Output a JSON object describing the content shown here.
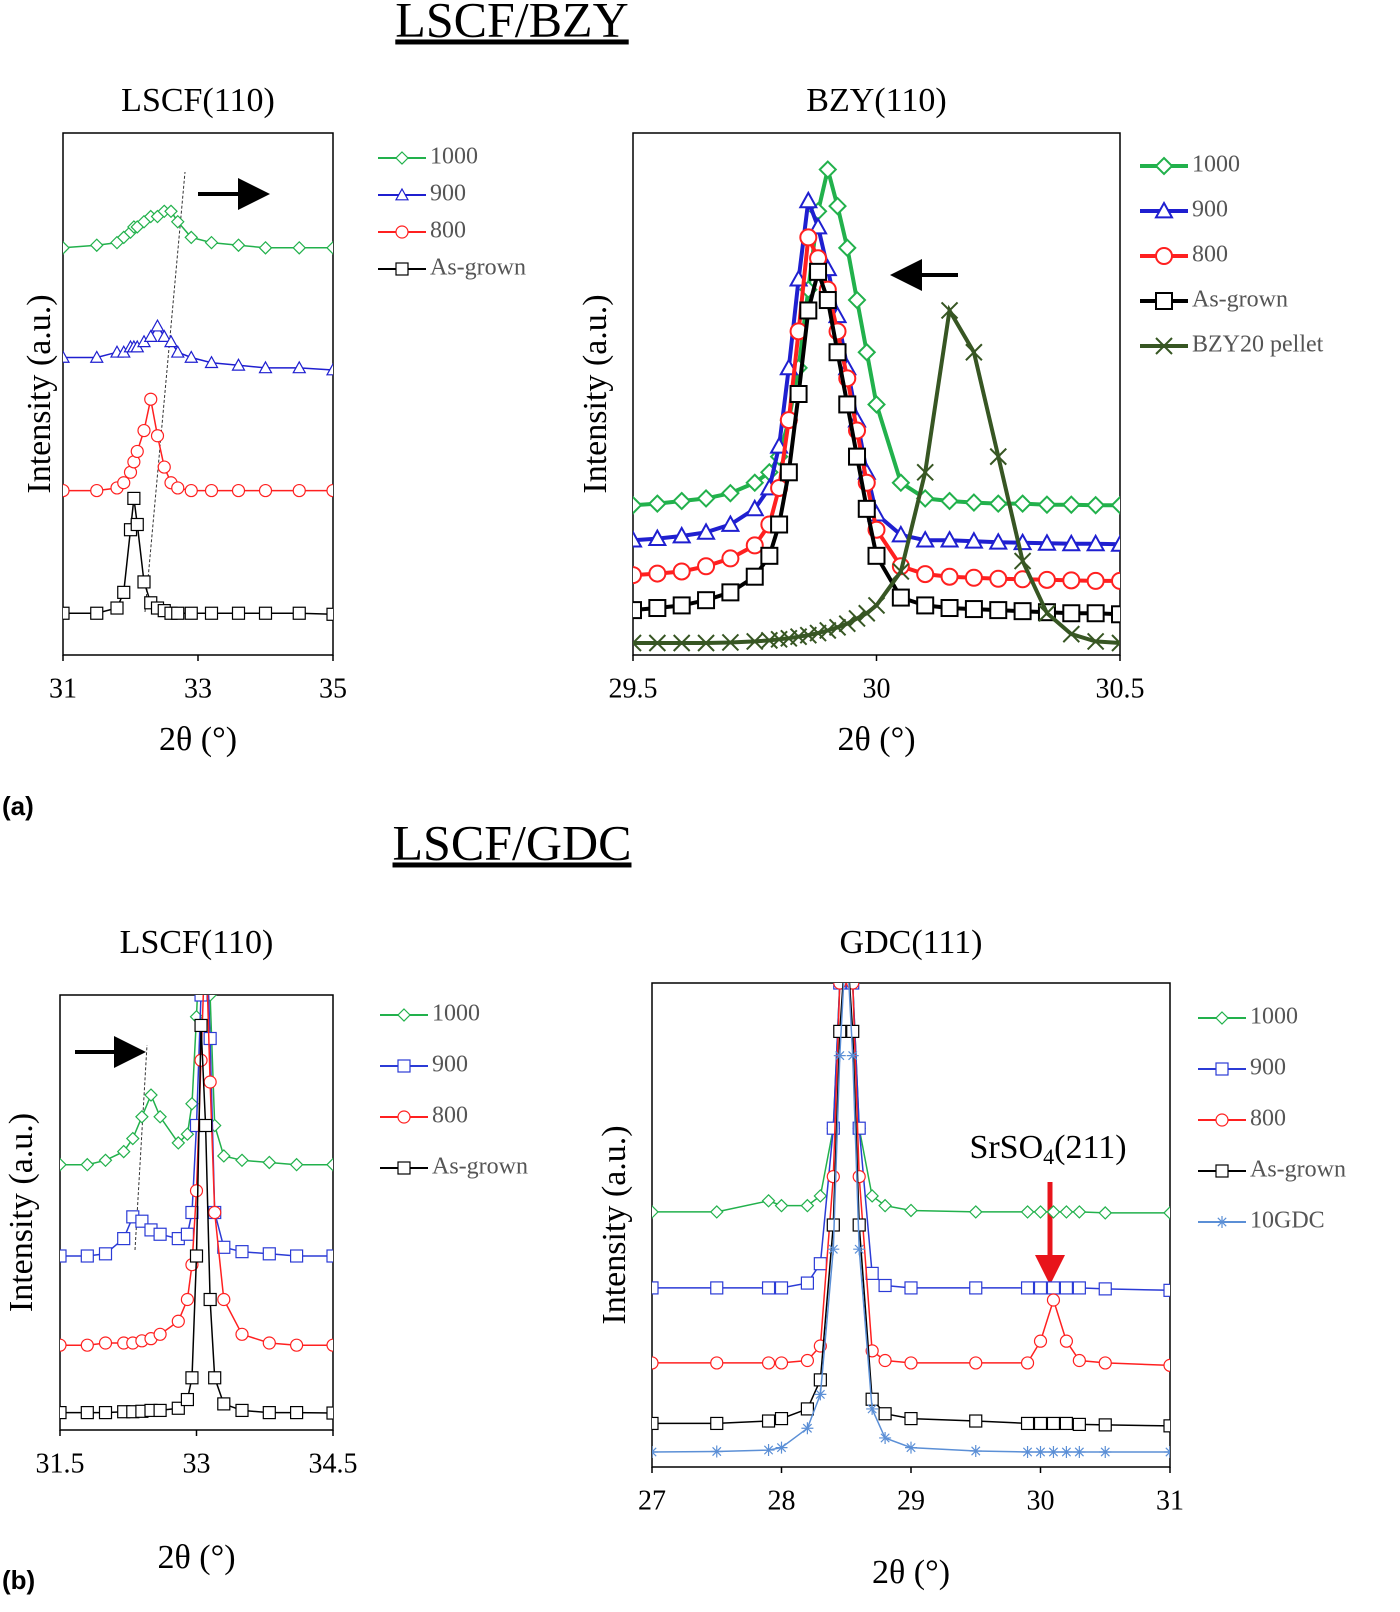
{
  "sections": [
    {
      "title": "LSCF/BZY",
      "label": "(a)"
    },
    {
      "title": "LSCF/GDC",
      "label": "(b)"
    }
  ],
  "chart_data": [
    {
      "type": "line",
      "title": "LSCF(110)",
      "x_label": "2θ (°)",
      "y_label": "Intensity (a.u.)",
      "xlim": [
        31,
        35
      ],
      "xticks": [
        31,
        33,
        35
      ],
      "ylim": [
        0,
        100
      ],
      "x": [
        31,
        31.5,
        31.8,
        31.9,
        32.0,
        32.05,
        32.1,
        32.2,
        32.3,
        32.4,
        32.5,
        32.6,
        32.7,
        32.9,
        33.2,
        33.6,
        34,
        34.5,
        35
      ],
      "series": [
        {
          "name": "1000",
          "color": "#22b14c",
          "marker": "diamond",
          "values": [
            78,
            78.5,
            79,
            80,
            81,
            82,
            82,
            83,
            84,
            84,
            85,
            85,
            83,
            80,
            79,
            78.5,
            78,
            78,
            78
          ]
        },
        {
          "name": "900",
          "color": "#1f1fd0",
          "marker": "triangle",
          "values": [
            57,
            57,
            58,
            58,
            59,
            59,
            59,
            60,
            61,
            63,
            61,
            60,
            58,
            57,
            56,
            55.5,
            55,
            55,
            54.6
          ]
        },
        {
          "name": "800",
          "color": "#ff2020",
          "marker": "circle",
          "values": [
            31.5,
            31.5,
            32,
            33,
            35,
            37,
            39,
            43,
            49,
            42,
            36,
            33,
            32,
            31.5,
            31.5,
            31.5,
            31.5,
            31.5,
            31.5
          ]
        },
        {
          "name": "As-grown",
          "color": "#000000",
          "marker": "square",
          "values": [
            8,
            8,
            9,
            12,
            24,
            30,
            25,
            14,
            10,
            9,
            8.5,
            8,
            8,
            8,
            8,
            8,
            8,
            8,
            7.8
          ]
        }
      ]
    },
    {
      "type": "line",
      "title": "BZY(110)",
      "x_label": "2θ (°)",
      "y_label": "Intensity (a.u.)",
      "xlim": [
        29.5,
        30.5
      ],
      "xticks": [
        29.5,
        30,
        30.5
      ],
      "ylim": [
        0,
        100
      ],
      "x": [
        29.5,
        29.55,
        29.6,
        29.65,
        29.7,
        29.75,
        29.78,
        29.8,
        29.82,
        29.84,
        29.86,
        29.88,
        29.9,
        29.92,
        29.94,
        29.96,
        29.98,
        30,
        30.05,
        30.1,
        30.15,
        30.2,
        30.25,
        30.3,
        30.35,
        30.4,
        30.45,
        30.5
      ],
      "series": [
        {
          "name": "1000",
          "color": "#22b14c",
          "marker": "diamond",
          "values": [
            28.7,
            29,
            29.5,
            30,
            31,
            33,
            35,
            38,
            45,
            55,
            70,
            85,
            93,
            86,
            78,
            68,
            58,
            48,
            33,
            30,
            29.5,
            29.2,
            29,
            29,
            28.8,
            28.8,
            28.7,
            28.7
          ]
        },
        {
          "name": "900",
          "color": "#1f1fd0",
          "marker": "triangle",
          "values": [
            22,
            22.3,
            22.8,
            23.5,
            25,
            28,
            32,
            40,
            55,
            72,
            87,
            82,
            74,
            65,
            55,
            45,
            35,
            27,
            23,
            22,
            22,
            21.8,
            21.6,
            21.5,
            21.4,
            21.3,
            21.3,
            21.2
          ]
        },
        {
          "name": "800",
          "color": "#ff2020",
          "marker": "circle",
          "values": [
            15.3,
            15.6,
            16,
            17,
            18.5,
            21,
            25,
            32,
            45,
            62,
            80,
            76,
            70,
            62,
            53,
            43,
            33,
            24,
            17,
            15.5,
            15,
            14.8,
            14.6,
            14.5,
            14.4,
            14.3,
            14.2,
            14.2
          ]
        },
        {
          "name": "As-grown",
          "color": "#000000",
          "marker": "square",
          "values": [
            8.6,
            9,
            9.5,
            10.5,
            12,
            15,
            19,
            25,
            35,
            50,
            66,
            73.4,
            68,
            58,
            48,
            38,
            28,
            19,
            11,
            9.5,
            9,
            8.8,
            8.6,
            8.4,
            8.2,
            8,
            8,
            7.8
          ]
        },
        {
          "name": "BZY20 pellet",
          "color": "#375623",
          "marker": "x",
          "values": [
            2.3,
            2.3,
            2.3,
            2.3,
            2.4,
            2.6,
            2.8,
            3,
            3.2,
            3.5,
            3.8,
            4.2,
            4.7,
            5.3,
            6,
            7,
            8,
            9.5,
            16,
            35,
            66,
            58,
            38,
            18,
            8,
            4,
            2.6,
            2.3
          ]
        }
      ]
    },
    {
      "type": "line",
      "title": "LSCF(110)",
      "x_label": "2θ (°)",
      "y_label": "Intensity (a.u.)",
      "xlim": [
        31.5,
        34.5
      ],
      "xticks": [
        31.5,
        33,
        34.5
      ],
      "ylim": [
        0,
        100
      ],
      "x": [
        31.5,
        31.8,
        32.0,
        32.2,
        32.3,
        32.4,
        32.5,
        32.6,
        32.8,
        32.9,
        32.95,
        33.0,
        33.05,
        33.1,
        33.15,
        33.2,
        33.3,
        33.5,
        33.8,
        34.1,
        34.5
      ],
      "series": [
        {
          "name": "1000",
          "color": "#22b14c",
          "marker": "diamond",
          "values": [
            61,
            61,
            62,
            64,
            67,
            72,
            77,
            72,
            66,
            68,
            75,
            95,
            120,
            130,
            100,
            70,
            63,
            62,
            61.5,
            61,
            61
          ]
        },
        {
          "name": "900",
          "color": "#2b3bd6",
          "marker": "square",
          "values": [
            40,
            40,
            40.5,
            44,
            49,
            48,
            46,
            45,
            44,
            45,
            50,
            70,
            100,
            120,
            90,
            50,
            42,
            41,
            40.5,
            40,
            40
          ]
        },
        {
          "name": "800",
          "color": "#ff2020",
          "marker": "circle",
          "values": [
            19.5,
            19.5,
            20,
            20,
            20,
            20.5,
            21,
            22,
            25,
            30,
            38,
            55,
            85,
            115,
            80,
            50,
            30,
            22,
            20,
            19.5,
            19.5
          ]
        },
        {
          "name": "As-grown",
          "color": "#000000",
          "marker": "square",
          "values": [
            4,
            4,
            4,
            4.2,
            4.2,
            4.3,
            4.5,
            4.5,
            5,
            7,
            12,
            40,
            93,
            70,
            30,
            12,
            6,
            4.5,
            4,
            4,
            3.9
          ]
        }
      ]
    },
    {
      "type": "line",
      "title": "GDC(111)",
      "x_label": "2θ (°)",
      "y_label": "Intensity (a.u.)",
      "annotation": [
        "SrSO",
        "4",
        "(211)"
      ],
      "xlim": [
        27,
        31
      ],
      "xticks": [
        27,
        28,
        29,
        30,
        31
      ],
      "ylim": [
        0,
        100
      ],
      "x": [
        27,
        27.5,
        27.9,
        28.0,
        28.2,
        28.3,
        28.4,
        28.45,
        28.5,
        28.55,
        28.6,
        28.7,
        28.8,
        29,
        29.5,
        29.9,
        30.0,
        30.1,
        30.2,
        30.3,
        30.5,
        31
      ],
      "series": [
        {
          "name": "1000",
          "color": "#22b14c",
          "marker": "diamond",
          "values": [
            52.7,
            52.7,
            55,
            54,
            54,
            56,
            70,
            100,
            130,
            100,
            70,
            56,
            54,
            53,
            52.7,
            52.7,
            52.7,
            52.7,
            52.7,
            52.7,
            52.5,
            52.5
          ]
        },
        {
          "name": "900",
          "color": "#2b3bd6",
          "marker": "square",
          "values": [
            37,
            37,
            37,
            37,
            38,
            42,
            70,
            100,
            120,
            100,
            70,
            40,
            37.5,
            37,
            37,
            37,
            37,
            37,
            37,
            37,
            36.8,
            36.5
          ]
        },
        {
          "name": "800",
          "color": "#ff2020",
          "marker": "circle",
          "values": [
            21.5,
            21.5,
            21.5,
            21.5,
            22,
            25,
            60,
            100,
            120,
            100,
            60,
            24,
            22,
            21.5,
            21.5,
            21.5,
            26,
            34.5,
            26,
            22,
            21.5,
            21
          ]
        },
        {
          "name": "As-grown",
          "color": "#000000",
          "marker": "square",
          "values": [
            9,
            9,
            9.5,
            10,
            12,
            18,
            50,
            90,
            110,
            90,
            50,
            14,
            11,
            10,
            9.5,
            9,
            9,
            9,
            9,
            8.8,
            8.7,
            8.5
          ]
        },
        {
          "name": "10GDC",
          "color": "#5b8fd6",
          "marker": "star",
          "values": [
            3.1,
            3.2,
            3.5,
            4,
            8,
            15,
            45,
            85,
            110,
            85,
            45,
            12,
            6,
            4,
            3.3,
            3.1,
            3.1,
            3.1,
            3.1,
            3.1,
            3.1,
            3.1
          ]
        }
      ]
    }
  ]
}
